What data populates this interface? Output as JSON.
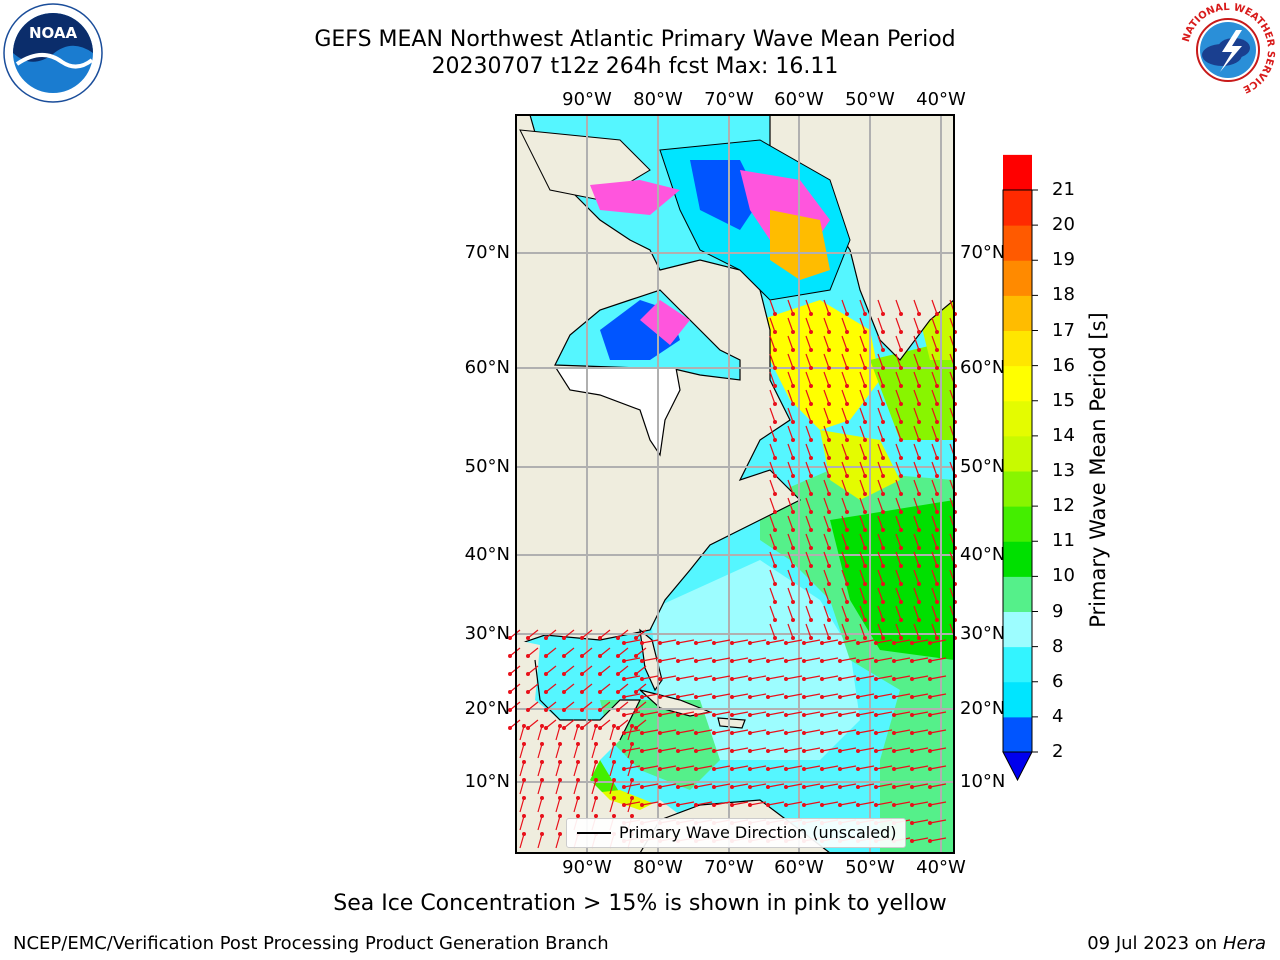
{
  "title": {
    "line1": "GEFS MEAN Northwest Atlantic Primary Wave Mean Period",
    "line2": "20230707 t12z 264h fcst   Max: 16.11"
  },
  "map": {
    "lon_labels": [
      "90°W",
      "80°W",
      "70°W",
      "60°W",
      "50°W",
      "40°W"
    ],
    "lat_labels": [
      "70°N",
      "60°N",
      "50°N",
      "40°N",
      "30°N",
      "20°N",
      "10°N"
    ],
    "legend_text": "Primary Wave Direction (unscaled)",
    "colors": {
      "land": "#efedde",
      "sea_ice_note": "pink to yellow",
      "vector": "#e8101a"
    }
  },
  "colorbar": {
    "title": "Primary Wave Mean Period [s]",
    "ticks": [
      "2",
      "4",
      "6",
      "8",
      "9",
      "10",
      "11",
      "12",
      "13",
      "14",
      "15",
      "16",
      "17",
      "18",
      "19",
      "20",
      "21"
    ],
    "colors": [
      "#0055ff",
      "#00e5ff",
      "#33f4ff",
      "#9dfdff",
      "#55f08a",
      "#00e000",
      "#44ee00",
      "#88f500",
      "#c8fa00",
      "#e4fc00",
      "#ffff00",
      "#ffe600",
      "#ffbc00",
      "#ff8a00",
      "#ff5a00",
      "#ff2a00",
      "#ff0000"
    ],
    "under_color": "#0000ee"
  },
  "note": "Sea Ice Concentration > 15% is shown in pink to yellow",
  "footer": {
    "left": "NCEP/EMC/Verification Post Processing Product Generation Branch",
    "right_date": "09 Jul 2023 on ",
    "right_host": "Hera"
  },
  "logos": {
    "noaa_text": "NOAA",
    "nws_ring_text": "NATIONAL WEATHER SERVICE"
  }
}
